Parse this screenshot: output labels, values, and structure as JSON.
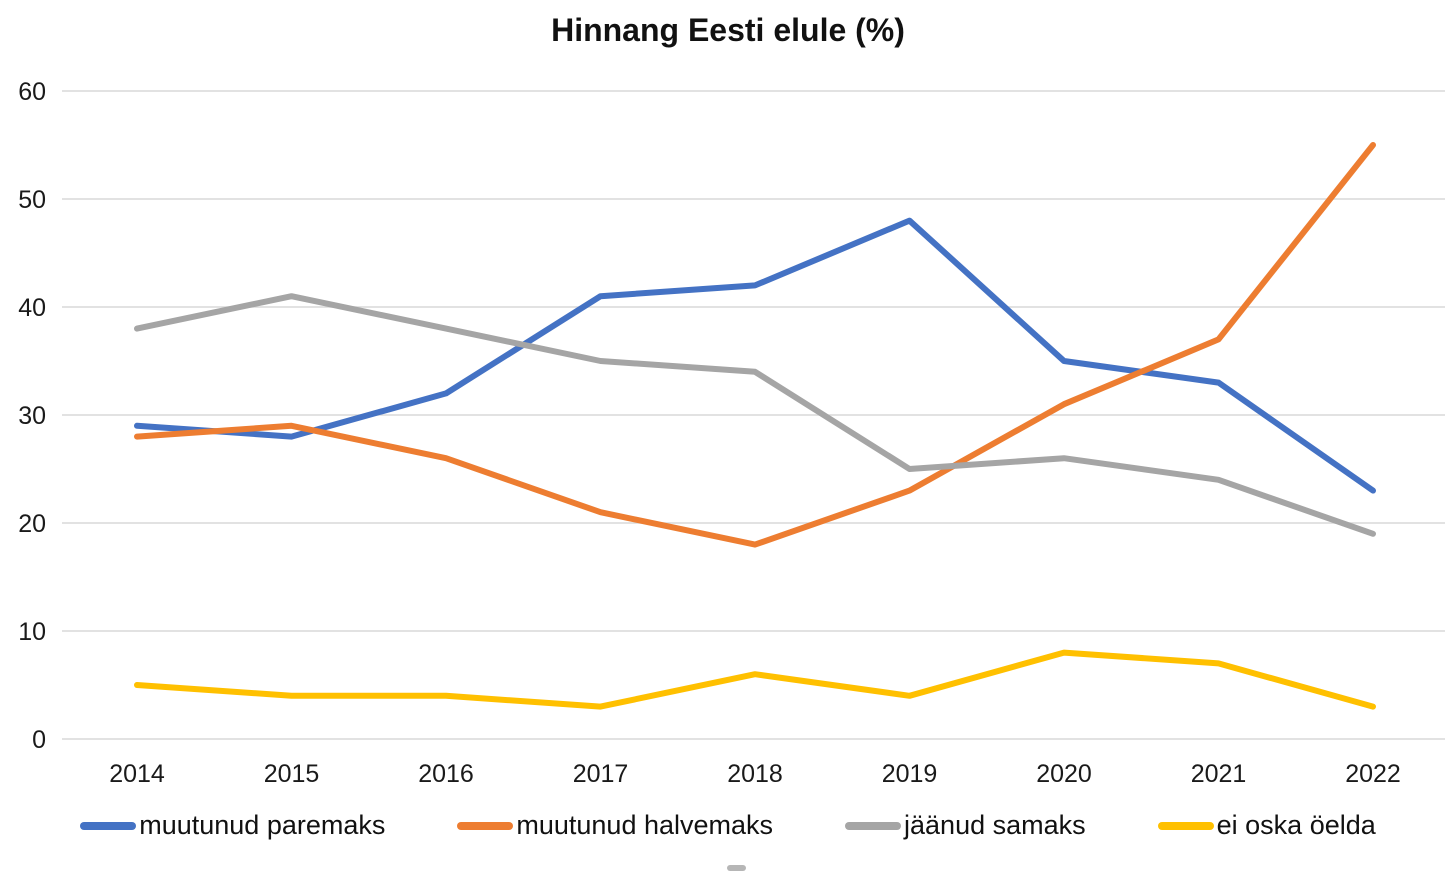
{
  "chart_data": {
    "type": "line",
    "title": "Hinnang Eesti elule (%)",
    "xlabel": "",
    "ylabel": "",
    "categories": [
      "2014",
      "2015",
      "2016",
      "2017",
      "2018",
      "2019",
      "2020",
      "2021",
      "2022"
    ],
    "series": [
      {
        "name": "muutunud paremaks",
        "color": "#4472C4",
        "values": [
          29,
          28,
          32,
          41,
          42,
          48,
          35,
          33,
          23
        ]
      },
      {
        "name": "muutunud halvemaks",
        "color": "#ED7D31",
        "values": [
          28,
          29,
          26,
          21,
          18,
          23,
          31,
          37,
          55
        ]
      },
      {
        "name": "jäänud samaks",
        "color": "#A5A5A5",
        "values": [
          38,
          41,
          38,
          35,
          34,
          25,
          26,
          24,
          19
        ]
      },
      {
        "name": "ei oska öelda",
        "color": "#FFC000",
        "values": [
          5,
          4,
          4,
          3,
          6,
          4,
          8,
          7,
          3
        ]
      }
    ],
    "ylim": [
      0,
      60
    ],
    "ytick_step": 10,
    "yticks": [
      "0",
      "10",
      "20",
      "30",
      "40",
      "50",
      "60"
    ],
    "grid": true,
    "gridline_color": "#D9D9D9",
    "axis_label_color": "#1a1a1a",
    "legend_position": "bottom",
    "line_width": 6
  }
}
